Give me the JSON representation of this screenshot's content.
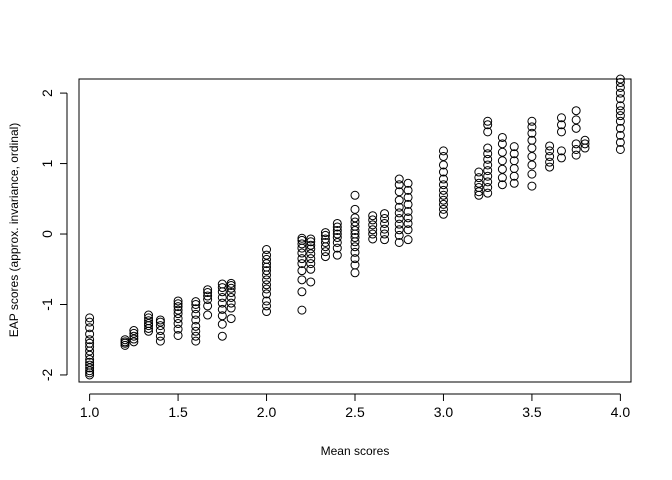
{
  "chart_data": {
    "type": "scatter",
    "title": "",
    "xlabel": "Mean scores",
    "ylabel": "EAP scores (approx. invariance, ordinal)",
    "xlim": [
      0.94,
      4.06
    ],
    "ylim": [
      -2.1,
      2.2
    ],
    "xticks": [
      "1.0",
      "1.5",
      "2.0",
      "2.5",
      "3.0",
      "3.5",
      "4.0"
    ],
    "yticks": [
      "-2",
      "-1",
      "0",
      "1",
      "2"
    ],
    "grid": false,
    "legend": "none",
    "marker": "open-circle",
    "groups": [
      {
        "x": 1.0,
        "y": [
          -2.0,
          -1.97,
          -1.94,
          -1.9,
          -1.86,
          -1.82,
          -1.78,
          -1.72,
          -1.66,
          -1.6,
          -1.55,
          -1.5,
          -1.42,
          -1.33,
          -1.25,
          -1.19
        ]
      },
      {
        "x": 1.2,
        "y": [
          -1.58,
          -1.55,
          -1.53,
          -1.5
        ]
      },
      {
        "x": 1.25,
        "y": [
          -1.53,
          -1.49,
          -1.45,
          -1.41,
          -1.37
        ]
      },
      {
        "x": 1.333,
        "y": [
          -1.38,
          -1.34,
          -1.3,
          -1.27,
          -1.23,
          -1.19,
          -1.15
        ]
      },
      {
        "x": 1.4,
        "y": [
          -1.52,
          -1.45,
          -1.37,
          -1.3,
          -1.25,
          -1.22
        ]
      },
      {
        "x": 1.5,
        "y": [
          -1.44,
          -1.35,
          -1.27,
          -1.2,
          -1.13,
          -1.08,
          -1.03,
          -0.99,
          -0.95
        ]
      },
      {
        "x": 1.6,
        "y": [
          -1.52,
          -1.45,
          -1.38,
          -1.31,
          -1.22,
          -1.14,
          -1.06,
          -1.0,
          -0.96
        ]
      },
      {
        "x": 1.667,
        "y": [
          -1.15,
          -1.02,
          -0.93,
          -0.88,
          -0.83,
          -0.79
        ]
      },
      {
        "x": 1.75,
        "y": [
          -1.45,
          -1.28,
          -1.16,
          -1.07,
          -0.98,
          -0.9,
          -0.82,
          -0.76,
          -0.71
        ]
      },
      {
        "x": 1.8,
        "y": [
          -1.2,
          -1.05,
          -0.98,
          -0.9,
          -0.83,
          -0.77,
          -0.73,
          -0.7
        ]
      },
      {
        "x": 2.0,
        "y": [
          -1.1,
          -1.02,
          -0.95,
          -0.85,
          -0.78,
          -0.72,
          -0.65,
          -0.58,
          -0.52,
          -0.47,
          -0.42,
          -0.36,
          -0.3,
          -0.22
        ]
      },
      {
        "x": 2.2,
        "y": [
          -1.08,
          -0.82,
          -0.65,
          -0.52,
          -0.42,
          -0.35,
          -0.27,
          -0.2,
          -0.14,
          -0.09,
          -0.06
        ]
      },
      {
        "x": 2.25,
        "y": [
          -0.68,
          -0.5,
          -0.42,
          -0.35,
          -0.28,
          -0.21,
          -0.16,
          -0.11,
          -0.07
        ]
      },
      {
        "x": 2.333,
        "y": [
          -0.32,
          -0.25,
          -0.18,
          -0.12,
          -0.07,
          -0.02,
          0.02
        ]
      },
      {
        "x": 2.4,
        "y": [
          -0.3,
          -0.2,
          -0.12,
          -0.05,
          0.0,
          0.05,
          0.1,
          0.15
        ]
      },
      {
        "x": 2.5,
        "y": [
          -0.55,
          -0.44,
          -0.35,
          -0.26,
          -0.18,
          -0.11,
          -0.05,
          0.0,
          0.05,
          0.11,
          0.17,
          0.23,
          0.35,
          0.55
        ]
      },
      {
        "x": 2.6,
        "y": [
          -0.07,
          0.0,
          0.06,
          0.13,
          0.2,
          0.26
        ]
      },
      {
        "x": 2.667,
        "y": [
          -0.08,
          0.0,
          0.07,
          0.15,
          0.22,
          0.29
        ]
      },
      {
        "x": 2.75,
        "y": [
          -0.12,
          -0.02,
          0.06,
          0.14,
          0.22,
          0.3,
          0.38,
          0.48,
          0.6,
          0.7,
          0.78
        ]
      },
      {
        "x": 2.8,
        "y": [
          -0.08,
          0.06,
          0.15,
          0.23,
          0.32,
          0.42,
          0.52,
          0.62,
          0.72
        ]
      },
      {
        "x": 3.0,
        "y": [
          0.28,
          0.35,
          0.42,
          0.48,
          0.55,
          0.62,
          0.7,
          0.78,
          0.88,
          0.98,
          1.1,
          1.18
        ]
      },
      {
        "x": 3.2,
        "y": [
          0.55,
          0.6,
          0.66,
          0.72,
          0.8,
          0.88
        ]
      },
      {
        "x": 3.25,
        "y": [
          0.58,
          0.66,
          0.74,
          0.82,
          0.9,
          0.98,
          1.06,
          1.14,
          1.22,
          1.45,
          1.55,
          1.6
        ]
      },
      {
        "x": 3.333,
        "y": [
          0.7,
          0.8,
          0.92,
          1.04,
          1.16,
          1.28,
          1.37
        ]
      },
      {
        "x": 3.4,
        "y": [
          0.72,
          0.82,
          0.93,
          1.04,
          1.14,
          1.24
        ]
      },
      {
        "x": 3.5,
        "y": [
          0.68,
          0.85,
          0.98,
          1.1,
          1.22,
          1.33,
          1.43,
          1.52,
          1.6
        ]
      },
      {
        "x": 3.6,
        "y": [
          0.95,
          1.02,
          1.1,
          1.18,
          1.25
        ]
      },
      {
        "x": 3.667,
        "y": [
          1.08,
          1.18,
          1.45,
          1.55,
          1.65
        ]
      },
      {
        "x": 3.75,
        "y": [
          1.12,
          1.2,
          1.28,
          1.5,
          1.62,
          1.75
        ]
      },
      {
        "x": 3.8,
        "y": [
          1.22,
          1.28,
          1.33
        ]
      },
      {
        "x": 4.0,
        "y": [
          1.2,
          1.3,
          1.4,
          1.5,
          1.6,
          1.68,
          1.75,
          1.82,
          1.92,
          2.0,
          2.08,
          2.15,
          2.2
        ]
      }
    ]
  }
}
